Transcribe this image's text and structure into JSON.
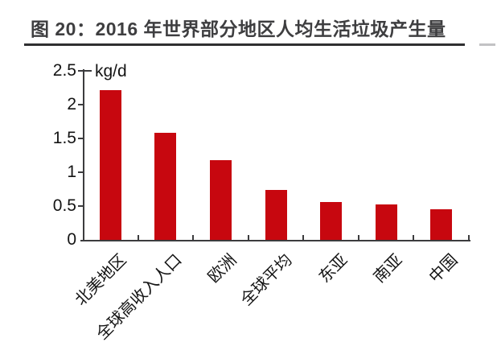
{
  "figure": {
    "title": "图 20：2016 年世界部分地区人均生活垃圾产生量",
    "unit_label": "kg/d"
  },
  "chart_data": {
    "type": "bar",
    "title": "图 20：2016 年世界部分地区人均生活垃圾产生量",
    "unit": "kg/d",
    "categories": [
      "北美地区",
      "全球高收入人口",
      "欧洲",
      "全球平均",
      "东亚",
      "南亚",
      "中国"
    ],
    "values": [
      2.21,
      1.58,
      1.18,
      0.74,
      0.56,
      0.52,
      0.45
    ],
    "xlabel": "",
    "ylabel": "kg/d",
    "ylim": [
      0,
      2.5
    ],
    "ytick_step": 0.5,
    "ytick_labels": [
      "0",
      "0.5",
      "1",
      "1.5",
      "2",
      "2.5"
    ],
    "grid": false,
    "legend": "none",
    "bar_color": "#c7070f",
    "axis_color": "#3c3c3e",
    "text_color": "#141414",
    "title_color": "#3e3e40"
  }
}
